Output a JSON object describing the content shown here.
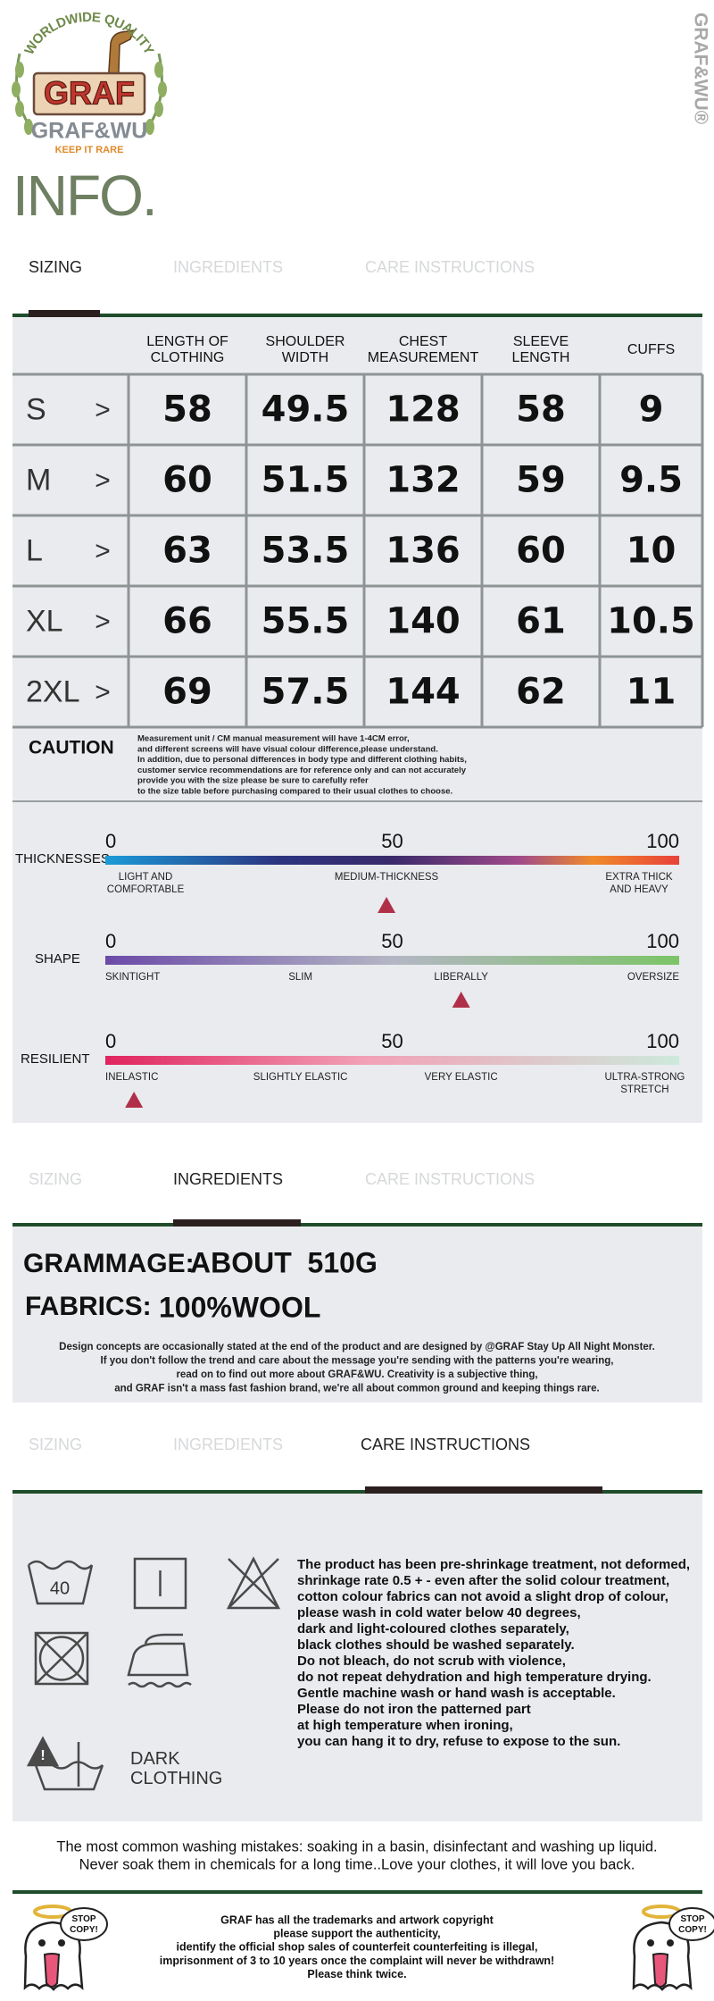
{
  "logo": {
    "arc_text": "WORLDWIDE QUALITY",
    "badge": "GRAF",
    "brand": "GRAF&WU",
    "tagline": "KEEP IT RARE"
  },
  "side_brand": "GRAF&WU®",
  "title": "INFO.",
  "tabs": [
    "SIZING",
    "INGREDIENTS",
    "CARE INSTRUCTIONS"
  ],
  "size_table": {
    "columns": [
      [
        "LENGTH OF",
        "CLOTHING"
      ],
      [
        "SHOULDER",
        "WIDTH"
      ],
      [
        "CHEST",
        "MEASUREMENT"
      ],
      [
        "SLEEVE",
        "LENGTH"
      ],
      [
        "CUFFS"
      ]
    ],
    "row_marker": ">",
    "rows": [
      {
        "size": "S",
        "values": [
          58,
          49.5,
          128,
          58,
          9
        ]
      },
      {
        "size": "M",
        "values": [
          60,
          51.5,
          132,
          59,
          9.5
        ]
      },
      {
        "size": "L",
        "values": [
          63,
          53.5,
          136,
          60,
          10
        ]
      },
      {
        "size": "XL",
        "values": [
          66,
          55.5,
          140,
          61,
          10.5
        ]
      },
      {
        "size": "2XL",
        "values": [
          69,
          57.5,
          144,
          62,
          11
        ]
      }
    ]
  },
  "caution": {
    "label": "CAUTION",
    "lines": [
      "Measurement unit / CM manual measurement will have 1-4CM error,",
      "and different screens will have visual colour difference,please understand.",
      "In addition, due to personal differences in body type and different clothing habits,",
      "customer service recommendations are for reference only and can not accurately",
      "provide you with the size please be sure to carefully refer",
      "to the size table before purchasing compared to their usual clothes to choose."
    ]
  },
  "scales": [
    {
      "label": "THICKNESSES",
      "ticks": [
        0,
        50,
        100
      ],
      "captions": [
        [
          "LIGHT AND",
          "COMFORTABLE"
        ],
        [
          "MEDIUM-THICKNESS"
        ],
        [
          "EXTRA THICK",
          "AND HEAVY"
        ]
      ],
      "marker": 49
    },
    {
      "label": "SHAPE",
      "ticks": [
        0,
        50,
        100
      ],
      "captions": [
        [
          "SKINTIGHT"
        ],
        [
          "SLIM"
        ],
        [
          "LIBERALLY"
        ],
        [
          "OVERSIZE"
        ]
      ],
      "marker": 62
    },
    {
      "label": "RESILIENT",
      "ticks": [
        0,
        50,
        100
      ],
      "captions": [
        [
          "INELASTIC"
        ],
        [
          "SLIGHTLY ELASTIC"
        ],
        [
          "VERY ELASTIC"
        ],
        [
          "ULTRA-STRONG",
          "STRETCH"
        ]
      ],
      "marker": 5
    }
  ],
  "ingredients": {
    "grammage_label": "GRAMMAGE:",
    "grammage_value": "ABOUT  510G",
    "fabrics_label": "FABRICS:",
    "fabrics_value": "100%WOOL",
    "note": [
      "Design concepts are occasionally stated at the end of the product and are designed by @GRAF Stay Up All Night Monster.",
      "If you don't follow the trend and care about the message you're sending with the patterns you're wearing,",
      "read on to find out more about GRAF&WU. Creativity is a subjective thing,",
      "and GRAF isn't a mass fast fashion brand, we're all about common ground and keeping things rare."
    ]
  },
  "care": {
    "wash_temp": "40",
    "dark_label": [
      "DARK",
      "CLOTHING"
    ],
    "lines": [
      "The product has been pre-shrinkage treatment, not deformed,",
      "shrinkage rate 0.5 + - even after the solid colour treatment,",
      "cotton colour fabrics can not avoid a slight drop of colour,",
      "please wash in cold water below 40 degrees,",
      "dark and light-coloured clothes separately,",
      "black clothes should be washed separately.",
      "Do not bleach, do not scrub with violence,",
      "do not repeat dehydration and high temperature drying.",
      "Gentle machine wash or hand wash is acceptable.",
      "Please do not iron the patterned part",
      "at high temperature when ironing,",
      "you can hang it to dry, refuse to expose to the sun."
    ]
  },
  "mistakes": [
    "The most common washing mistakes: soaking in a basin, disinfectant and washing up liquid.",
    "Never soak them in chemicals for a long time..Love your clothes, it will love you back."
  ],
  "footer": {
    "stamp": [
      "STOP",
      "COPY!"
    ],
    "lines": [
      "GRAF has all the trademarks and artwork copyright",
      "please support the authenticity,",
      "identify the official shop sales of counterfeit counterfeiting is illegal,",
      "imprisonment of 3 to 10 years once the complaint will never be withdrawn!",
      "Please think twice."
    ]
  }
}
